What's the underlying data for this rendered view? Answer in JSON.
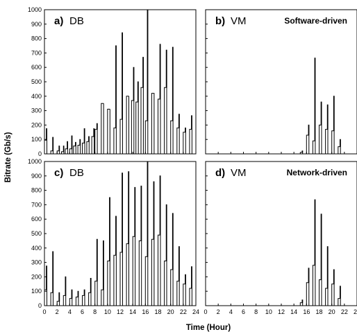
{
  "chart_data": {
    "type": "line",
    "ylabel": "Bitrate (Gb/s)",
    "xlabel": "Time (Hour)",
    "x_ticks": [
      0,
      2,
      4,
      6,
      8,
      10,
      12,
      14,
      16,
      18,
      20,
      22,
      24
    ],
    "y_ticks": [
      0,
      100,
      200,
      300,
      400,
      500,
      600,
      700,
      800,
      900,
      1000
    ],
    "xlim": [
      0,
      24
    ],
    "ylim": [
      0,
      1000
    ],
    "grid": false,
    "panels": [
      {
        "letter": "a)",
        "name": "DB",
        "tag": "",
        "bursts": [
          [
            0.0,
            95,
            175
          ],
          [
            1.0,
            20,
            115
          ],
          [
            2.0,
            20,
            55
          ],
          [
            2.7,
            15,
            55
          ],
          [
            3.3,
            35,
            85
          ],
          [
            4.0,
            35,
            125
          ],
          [
            4.6,
            55,
            80
          ],
          [
            5.3,
            60,
            100
          ],
          [
            6.0,
            75,
            175
          ],
          [
            6.7,
            85,
            120
          ],
          [
            7.5,
            120,
            175
          ],
          [
            8.0,
            170,
            210
          ],
          [
            9.0,
            350,
            350
          ],
          [
            10.0,
            310,
            310
          ],
          [
            11.0,
            180,
            750
          ],
          [
            12.0,
            240,
            840
          ],
          [
            13.0,
            400,
            400
          ],
          [
            13.8,
            370,
            600
          ],
          [
            14.5,
            360,
            500
          ],
          [
            15.3,
            460,
            670
          ],
          [
            16.0,
            230,
            1000
          ],
          [
            17.0,
            420,
            420
          ],
          [
            18.0,
            380,
            760
          ],
          [
            19.0,
            460,
            720
          ],
          [
            20.0,
            230,
            740
          ],
          [
            21.0,
            180,
            275
          ],
          [
            22.0,
            150,
            180
          ],
          [
            23.0,
            170,
            265
          ]
        ]
      },
      {
        "letter": "b)",
        "name": "VM",
        "tag": "Software-driven",
        "bursts": [
          [
            15.0,
            10,
            20
          ],
          [
            16.0,
            130,
            200
          ],
          [
            17.0,
            90,
            665
          ],
          [
            18.0,
            200,
            360
          ],
          [
            19.0,
            170,
            340
          ],
          [
            20.0,
            160,
            400
          ],
          [
            21.0,
            50,
            100
          ]
        ]
      },
      {
        "letter": "c)",
        "name": "DB",
        "tag": "",
        "bursts": [
          [
            0.0,
            110,
            275
          ],
          [
            1.0,
            90,
            375
          ],
          [
            2.0,
            30,
            90
          ],
          [
            3.0,
            70,
            200
          ],
          [
            4.0,
            50,
            110
          ],
          [
            5.0,
            60,
            100
          ],
          [
            6.0,
            70,
            110
          ],
          [
            7.0,
            90,
            190
          ],
          [
            8.0,
            170,
            460
          ],
          [
            9.0,
            110,
            450
          ],
          [
            10.0,
            310,
            750
          ],
          [
            11.0,
            350,
            620
          ],
          [
            12.0,
            370,
            920
          ],
          [
            13.0,
            430,
            930
          ],
          [
            14.0,
            480,
            820
          ],
          [
            15.0,
            450,
            830
          ],
          [
            16.0,
            340,
            1000
          ],
          [
            17.0,
            460,
            860
          ],
          [
            18.0,
            490,
            900
          ],
          [
            19.0,
            310,
            700
          ],
          [
            20.0,
            250,
            640
          ],
          [
            21.0,
            170,
            410
          ],
          [
            22.0,
            150,
            215
          ],
          [
            23.0,
            120,
            270
          ]
        ]
      },
      {
        "letter": "d)",
        "name": "VM",
        "tag": "Network-driven",
        "bursts": [
          [
            15.0,
            20,
            40
          ],
          [
            16.0,
            160,
            260
          ],
          [
            17.0,
            280,
            735
          ],
          [
            18.0,
            180,
            635
          ],
          [
            19.0,
            120,
            410
          ],
          [
            20.0,
            150,
            250
          ],
          [
            21.0,
            50,
            135
          ]
        ]
      }
    ]
  }
}
